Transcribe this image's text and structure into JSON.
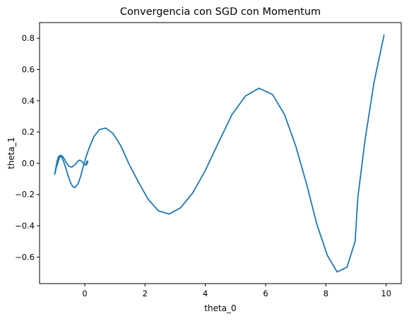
{
  "chart_data": {
    "type": "line",
    "title": "Convergencia con SGD con Momentum",
    "xlabel": "theta_0",
    "ylabel": "theta_1",
    "xlim": [
      -1.5,
      10.5
    ],
    "ylim": [
      -0.77,
      0.9
    ],
    "xticks": [
      0,
      2,
      4,
      6,
      8,
      10
    ],
    "xtick_labels": [
      "0",
      "2",
      "4",
      "6",
      "8",
      "10"
    ],
    "yticks": [
      -0.6,
      -0.4,
      -0.2,
      0.0,
      0.2,
      0.4,
      0.6,
      0.8
    ],
    "ytick_labels": [
      "−0.6",
      "−0.4",
      "−0.2",
      "0.0",
      "0.2",
      "0.4",
      "0.6",
      "0.8"
    ],
    "grid": false,
    "legend": "none",
    "line_color": "#1f77b4",
    "series": [
      {
        "x": [
          9.93,
          9.6,
          9.3,
          9.06,
          8.97,
          8.7,
          8.37,
          8.05,
          7.7,
          7.37,
          7.0,
          6.63,
          6.23,
          5.78,
          5.33,
          4.88,
          4.43,
          3.99,
          3.58,
          3.18,
          2.8,
          2.45,
          2.1,
          1.78,
          1.48,
          1.2,
          0.94,
          0.7,
          0.48,
          0.3,
          0.15,
          0.04,
          -0.05,
          -0.13,
          -0.22,
          -0.32,
          -0.4,
          -0.48,
          -0.56,
          -0.63,
          -0.7,
          -0.77,
          -0.83,
          -0.88,
          -0.92,
          -0.96,
          -1.0,
          -0.98,
          -0.95,
          -0.9,
          -0.85,
          -0.8,
          -0.74,
          -0.67,
          -0.6,
          -0.52,
          -0.44,
          -0.36,
          -0.28,
          -0.22,
          -0.16,
          -0.1,
          -0.05,
          0.0,
          0.04,
          0.07,
          0.09,
          0.1,
          0.09,
          0.07,
          0.05,
          0.04,
          0.05,
          0.07,
          0.09,
          0.1
        ],
        "y": [
          0.82,
          0.52,
          0.15,
          -0.22,
          -0.5,
          -0.665,
          -0.695,
          -0.59,
          -0.39,
          -0.14,
          0.11,
          0.31,
          0.44,
          0.48,
          0.43,
          0.31,
          0.13,
          -0.05,
          -0.19,
          -0.285,
          -0.325,
          -0.305,
          -0.23,
          -0.12,
          -0.01,
          0.11,
          0.19,
          0.225,
          0.215,
          0.17,
          0.1,
          0.04,
          -0.02,
          -0.08,
          -0.13,
          -0.155,
          -0.15,
          -0.12,
          -0.075,
          -0.03,
          0.01,
          0.04,
          0.05,
          0.04,
          0.01,
          -0.03,
          -0.07,
          -0.06,
          -0.03,
          0.0,
          0.03,
          0.05,
          0.045,
          0.025,
          0.0,
          -0.02,
          -0.025,
          -0.015,
          0.0,
          0.015,
          0.02,
          0.012,
          0.0,
          -0.01,
          -0.012,
          -0.005,
          0.005,
          0.012,
          0.015,
          0.01,
          0.002,
          -0.005,
          -0.008,
          -0.003,
          0.004,
          0.01
        ]
      }
    ]
  }
}
